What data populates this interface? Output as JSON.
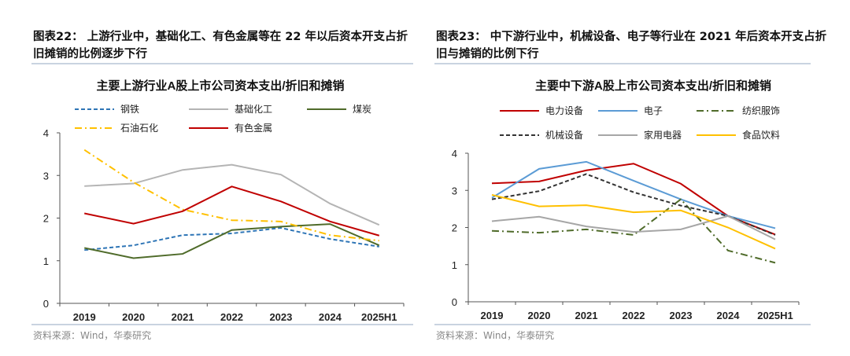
{
  "left": {
    "figure_title": "图表22：  上游行业中，基础化工、有色金属等在 22 年以后资本开支占折旧摊销的比例逐步下行",
    "source": "资料来源：Wind，华泰研究"
  },
  "right": {
    "figure_title": "图表23：  中下游行业中，机械设备、电子等行业在 2021 年后资本开支占折旧与摊销的比例下行",
    "source": "资料来源：Wind，华泰研究"
  },
  "chart_data": [
    {
      "type": "line",
      "title": "主要上游行业A股上市公司资本支出/折旧和摊销",
      "categories": [
        "2019",
        "2020",
        "2021",
        "2022",
        "2023",
        "2024",
        "2025H1"
      ],
      "ylim": [
        0,
        4
      ],
      "yticks": [
        "0",
        "1",
        "2",
        "3",
        "4"
      ],
      "grid": false,
      "legend": "top",
      "series": [
        {
          "name": "钢铁",
          "color": "#2e75b6",
          "dash": "dashed",
          "values": [
            1.25,
            1.36,
            1.6,
            1.64,
            1.77,
            1.51,
            1.33
          ]
        },
        {
          "name": "基础化工",
          "color": "#b4b4b4",
          "dash": "solid",
          "values": [
            2.75,
            2.81,
            3.13,
            3.25,
            3.02,
            2.34,
            1.84
          ]
        },
        {
          "name": "煤炭",
          "color": "#4f6b2a",
          "dash": "solid",
          "values": [
            1.3,
            1.06,
            1.16,
            1.72,
            1.8,
            1.86,
            1.36
          ]
        },
        {
          "name": "石油石化",
          "color": "#ffc000",
          "dash": "dashdot",
          "values": [
            3.6,
            2.84,
            2.2,
            1.95,
            1.92,
            1.6,
            1.47
          ]
        },
        {
          "name": "有色金属",
          "color": "#c00000",
          "dash": "solid",
          "values": [
            2.11,
            1.87,
            2.16,
            2.74,
            2.39,
            1.92,
            1.59
          ]
        }
      ]
    },
    {
      "type": "line",
      "title": "主要中下游A股上市公司资本支出/折旧和摊销",
      "categories": [
        "2019",
        "2020",
        "2021",
        "2022",
        "2023",
        "2024",
        "2025H1"
      ],
      "ylim": [
        0,
        4
      ],
      "yticks": [
        "0",
        "1",
        "2",
        "3",
        "4"
      ],
      "grid": false,
      "legend": "top",
      "series": [
        {
          "name": "电力设备",
          "color": "#c00000",
          "dash": "solid",
          "values": [
            3.19,
            3.24,
            3.54,
            3.72,
            3.18,
            2.31,
            1.81
          ]
        },
        {
          "name": "电子",
          "color": "#5b9bd5",
          "dash": "solid",
          "values": [
            2.8,
            3.58,
            3.77,
            3.26,
            2.76,
            2.31,
            1.98
          ]
        },
        {
          "name": "纺织服饰",
          "color": "#4f6b2a",
          "dash": "dashdot",
          "values": [
            1.91,
            1.86,
            1.95,
            1.8,
            2.76,
            1.38,
            1.05
          ]
        },
        {
          "name": "机械设备",
          "color": "#333333",
          "dash": "dashed",
          "values": [
            2.76,
            2.98,
            3.44,
            2.95,
            2.59,
            2.31,
            1.8
          ]
        },
        {
          "name": "家用电器",
          "color": "#a6a6a6",
          "dash": "solid",
          "values": [
            2.17,
            2.29,
            2.03,
            1.88,
            1.95,
            2.31,
            1.68
          ]
        },
        {
          "name": "食品饮料",
          "color": "#ffc000",
          "dash": "solid",
          "values": [
            2.88,
            2.57,
            2.6,
            2.41,
            2.46,
            2.0,
            1.43
          ]
        }
      ]
    }
  ]
}
